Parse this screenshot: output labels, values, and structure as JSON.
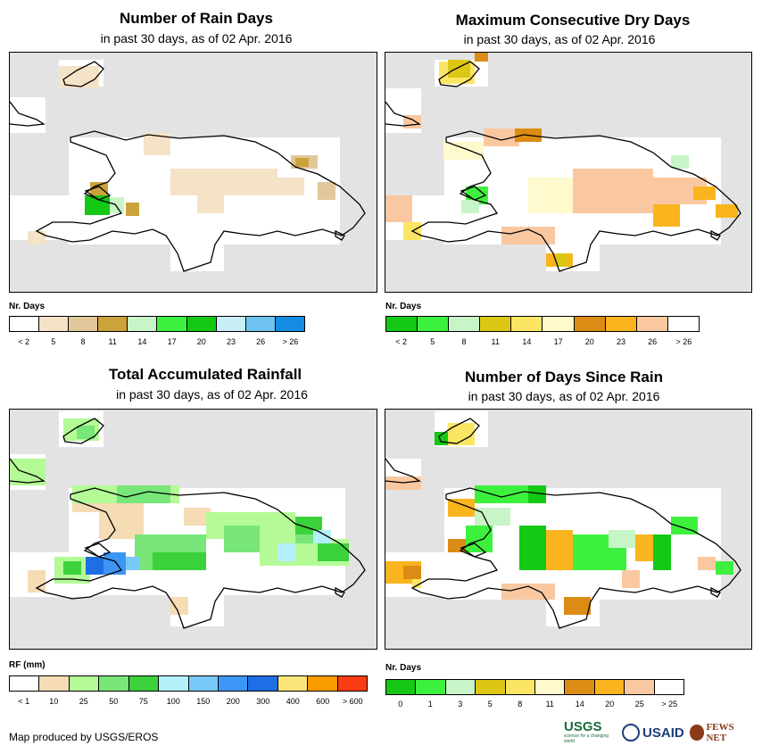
{
  "panels": [
    {
      "id": "rain_days",
      "title": "Number of Rain Days",
      "subtitle": "in past 30 days, as of 02 Apr. 2016",
      "legend_label": "Nr. Days",
      "legend_colors": [
        "#ffffff",
        "#f5e3c8",
        "#e1c89a",
        "#cca33a",
        "#c8f5c8",
        "#3ef03e",
        "#14c814",
        "#c8eef5",
        "#6ec3f0",
        "#148ce1"
      ],
      "legend_ticks": [
        "< 2",
        "5",
        "8",
        "11",
        "14",
        "17",
        "20",
        "23",
        "26",
        "> 26"
      ]
    },
    {
      "id": "dry_days",
      "title": "Maximum Consecutive Dry Days",
      "subtitle": "in past 30 days, as of 02 Apr. 2016",
      "legend_label": "Nr. Days",
      "legend_colors": [
        "#14c814",
        "#3ef03e",
        "#c8f5c8",
        "#dcc814",
        "#fae664",
        "#fffacd",
        "#dc8c14",
        "#fab41e",
        "#fac8a0",
        "#ffffff"
      ],
      "legend_ticks": [
        "< 2",
        "5",
        "8",
        "11",
        "14",
        "17",
        "20",
        "23",
        "26",
        "> 26"
      ]
    },
    {
      "id": "rainfall",
      "title": "Total Accumulated Rainfall",
      "subtitle": "in past 30 days, as of 02 Apr. 2016",
      "legend_label": "RF (mm)",
      "legend_colors": [
        "#ffffff",
        "#f5dcb4",
        "#b4fa96",
        "#78e678",
        "#3cd23c",
        "#b4f0fa",
        "#78c8fa",
        "#3c96f5",
        "#1e6ee6",
        "#fae678",
        "#fa9b00",
        "#fa3c14"
      ],
      "legend_ticks": [
        "< 1",
        "10",
        "25",
        "50",
        "75",
        "100",
        "150",
        "200",
        "300",
        "400",
        "600",
        "> 600"
      ]
    },
    {
      "id": "days_since",
      "title": "Number of Days Since Rain",
      "subtitle": "in past 30 days, as of 02 Apr. 2016",
      "legend_label": "Nr. Days",
      "legend_colors": [
        "#14c814",
        "#3ef03e",
        "#c8f5c8",
        "#dcc814",
        "#fae664",
        "#fffacd",
        "#dc8c14",
        "#fab41e",
        "#fac8a0",
        "#ffffff"
      ],
      "legend_ticks": [
        "0",
        "1",
        "3",
        "5",
        "8",
        "11",
        "14",
        "20",
        "25",
        "> 25"
      ]
    }
  ],
  "credit": "Map produced by USGS/EROS",
  "logos": {
    "usgs": "USGS",
    "usgs_tagline": "science for a changing world",
    "usaid": "USAID",
    "fews": "FEWS NET"
  }
}
